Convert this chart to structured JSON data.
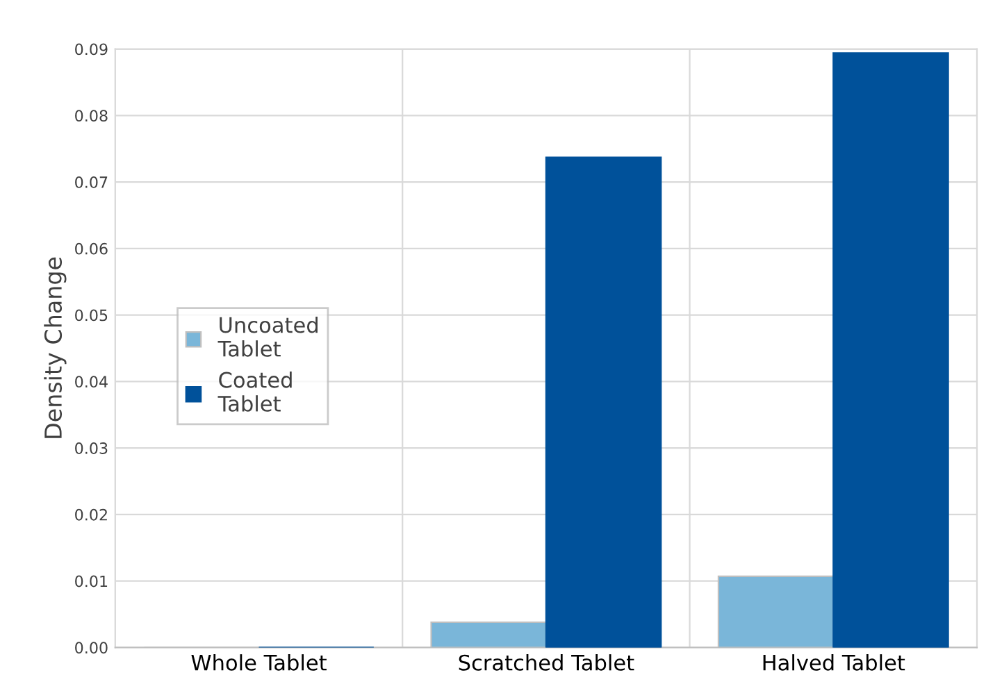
{
  "chart_data": {
    "type": "bar",
    "ylabel": "Density Change",
    "categories": [
      "Whole Tablet",
      "Scratched Tablet",
      "Halved Tablet"
    ],
    "series": [
      {
        "name": "Uncoated\nTablet",
        "color": "#7ab6d9",
        "values": [
          0,
          0.0038,
          0.0107
        ]
      },
      {
        "name": "Coated\nTablet",
        "color": "#00519a",
        "values": [
          0,
          0.0737,
          0.0894
        ]
      }
    ],
    "ylim": [
      0,
      0.09
    ],
    "yticks": [
      {
        "value": 0,
        "label": "0.00"
      },
      0.01,
      0.02,
      0.03,
      0.04,
      0.05,
      0.06,
      0.07,
      0.08,
      0.09
    ],
    "grid": true,
    "legend": "center left"
  }
}
